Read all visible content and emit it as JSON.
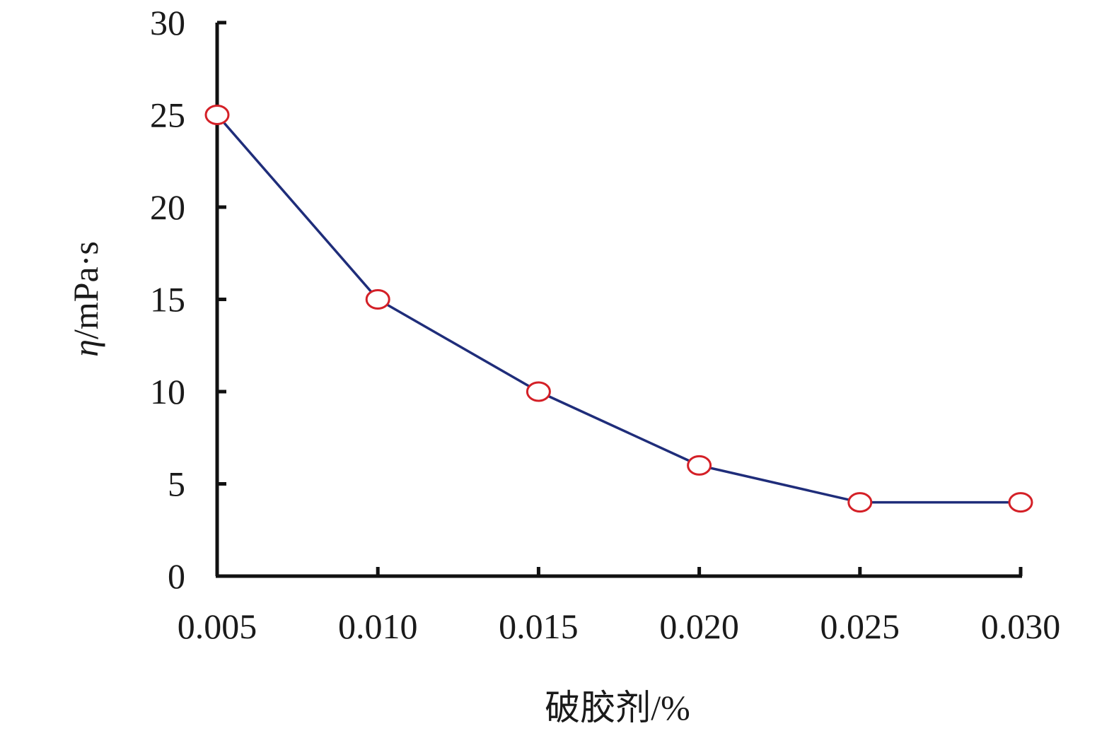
{
  "chart_data": {
    "type": "line",
    "title": "",
    "xlabel": "破胶剂/%",
    "ylabel_symbol": "η",
    "ylabel_unit": "/mPa·s",
    "x_tick_labels": [
      "0.005",
      "0.010",
      "0.015",
      "0.020",
      "0.025",
      "0.030"
    ],
    "y_tick_labels": [
      "0",
      "5",
      "10",
      "15",
      "20",
      "25",
      "30"
    ],
    "xlim": [
      0.005,
      0.03
    ],
    "ylim": [
      0,
      30
    ],
    "grid": false,
    "series": [
      {
        "x": [
          0.005,
          0.01,
          0.015,
          0.02,
          0.025,
          0.03
        ],
        "values": [
          25,
          15,
          10,
          6,
          4,
          4
        ],
        "line_color": "#1f2d7a",
        "marker": "circle-open",
        "marker_color": "#d42027"
      }
    ]
  }
}
